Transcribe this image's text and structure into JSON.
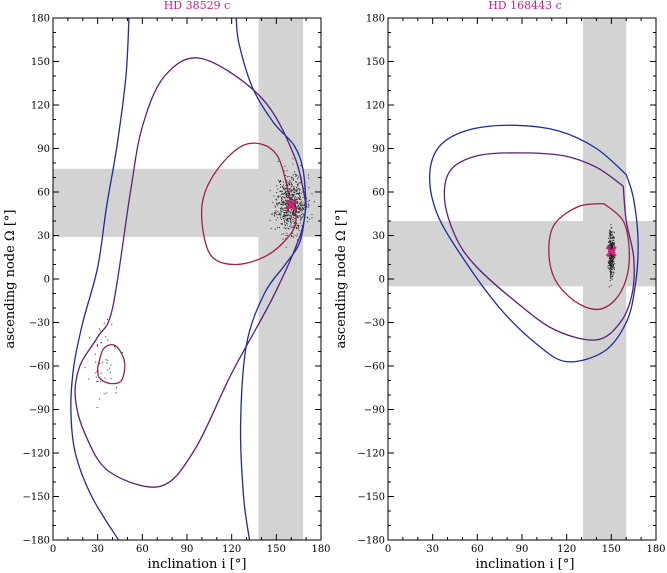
{
  "chart_data": [
    {
      "type": "scatter",
      "title": "HD 38529 c",
      "xlabel": "inclination i [°]",
      "ylabel": "ascending node Ω [°]",
      "xlim": [
        0,
        180
      ],
      "ylim": [
        -180,
        180
      ],
      "x_ticks": [
        0,
        30,
        60,
        90,
        120,
        150,
        180
      ],
      "x_tick_labels": [
        "0",
        "30",
        "60",
        "90",
        "120",
        "150",
        "180"
      ],
      "y_ticks": [
        -180,
        -150,
        -120,
        -90,
        -60,
        -30,
        0,
        30,
        60,
        90,
        120,
        150,
        180
      ],
      "y_tick_labels": [
        "−180",
        "−150",
        "−120",
        "−90",
        "−60",
        "−30",
        "0",
        "30",
        "60",
        "90",
        "120",
        "150",
        "180"
      ],
      "grid": false,
      "shaded_bands": [
        {
          "orientation": "vertical",
          "range": [
            138,
            168
          ]
        },
        {
          "orientation": "horizontal",
          "range": [
            29,
            76
          ]
        }
      ],
      "marker": {
        "x": 160,
        "y": 51
      },
      "contours": [
        {
          "color": "#9e1f4b",
          "points": [
            [
              160,
              51
            ],
            [
              150,
              86
            ],
            [
              130,
              93
            ],
            [
              110,
              75
            ],
            [
              100,
              50
            ],
            [
              105,
              18
            ],
            [
              122,
              10
            ],
            [
              145,
              17
            ],
            [
              162,
              35
            ],
            [
              162,
              51
            ]
          ]
        },
        {
          "color": "#9e1f4b",
          "points": [
            [
              30,
              -61
            ],
            [
              34,
              -48
            ],
            [
              42,
              -46
            ],
            [
              48,
              -57
            ],
            [
              46,
              -70
            ],
            [
              38,
              -72
            ],
            [
              31,
              -68
            ],
            [
              30,
              -61
            ]
          ]
        },
        {
          "color": "#5a1f7a",
          "points": [
            [
              170,
              51
            ],
            [
              162,
              85
            ],
            [
              140,
              125
            ],
            [
              100,
              152
            ],
            [
              75,
              140
            ],
            [
              60,
              105
            ],
            [
              52,
              60
            ],
            [
              40,
              -20
            ],
            [
              30,
              -40
            ],
            [
              18,
              -60
            ],
            [
              15,
              -82
            ],
            [
              22,
              -108
            ],
            [
              38,
              -133
            ],
            [
              72,
              -143
            ],
            [
              95,
              -118
            ],
            [
              120,
              -65
            ],
            [
              148,
              -12
            ],
            [
              166,
              30
            ],
            [
              170,
              51
            ]
          ]
        },
        {
          "color": "#1b2aa6",
          "points": [
            [
              170,
              51
            ],
            [
              168,
              75
            ],
            [
              162,
              92
            ],
            [
              148,
              108
            ],
            [
              134,
              132
            ],
            [
              125,
              162
            ],
            [
              123,
              180
            ]
          ]
        },
        {
          "color": "#1b2aa6",
          "points": [
            [
              170,
              51
            ],
            [
              166,
              26
            ],
            [
              156,
              10
            ],
            [
              142,
              -10
            ],
            [
              130,
              -45
            ],
            [
              126,
              -100
            ],
            [
              128,
              -150
            ],
            [
              132,
              -180
            ]
          ]
        },
        {
          "color": "#1b2aa6",
          "points": [
            [
              51,
              180
            ],
            [
              49,
              140
            ],
            [
              43,
              92
            ],
            [
              36,
              50
            ],
            [
              30,
              8
            ],
            [
              20,
              -30
            ],
            [
              14,
              -60
            ],
            [
              12,
              -90
            ],
            [
              15,
              -120
            ],
            [
              26,
              -150
            ],
            [
              44,
              -180
            ]
          ]
        }
      ]
    },
    {
      "type": "scatter",
      "title": "HD 168443 c",
      "xlabel": "inclination i [°]",
      "ylabel": "ascending node Ω [°]",
      "xlim": [
        0,
        180
      ],
      "ylim": [
        -180,
        180
      ],
      "x_ticks": [
        0,
        30,
        60,
        90,
        120,
        150,
        180
      ],
      "x_tick_labels": [
        "0",
        "30",
        "60",
        "90",
        "120",
        "150",
        "180"
      ],
      "y_ticks": [
        -180,
        -150,
        -120,
        -90,
        -60,
        -30,
        0,
        30,
        60,
        90,
        120,
        150,
        180
      ],
      "y_tick_labels": [
        "−180",
        "−150",
        "−120",
        "−90",
        "−60",
        "−30",
        "0",
        "30",
        "60",
        "90",
        "120",
        "150",
        "180"
      ],
      "grid": false,
      "shaded_bands": [
        {
          "orientation": "vertical",
          "range": [
            131,
            160
          ]
        },
        {
          "orientation": "horizontal",
          "range": [
            -5,
            40
          ]
        }
      ],
      "marker": {
        "x": 150,
        "y": 19
      },
      "contours": [
        {
          "color": "#9e1f4b",
          "points": [
            [
              145,
              52
            ],
            [
              128,
              50
            ],
            [
              112,
              38
            ],
            [
              108,
              20
            ],
            [
              112,
              0
            ],
            [
              125,
              -15
            ],
            [
              140,
              -21
            ],
            [
              152,
              -15
            ],
            [
              160,
              0
            ],
            [
              162,
              20
            ],
            [
              158,
              40
            ],
            [
              145,
              52
            ]
          ]
        },
        {
          "color": "#5a1f7a",
          "points": [
            [
              158,
              64
            ],
            [
              140,
              77
            ],
            [
              118,
              85
            ],
            [
              88,
              87
            ],
            [
              60,
              85
            ],
            [
              42,
              75
            ],
            [
              38,
              55
            ],
            [
              45,
              30
            ],
            [
              58,
              10
            ],
            [
              85,
              -15
            ],
            [
              112,
              -35
            ],
            [
              140,
              -42
            ],
            [
              156,
              -30
            ],
            [
              164,
              -10
            ],
            [
              165,
              15
            ],
            [
              160,
              40
            ],
            [
              158,
              64
            ]
          ]
        },
        {
          "color": "#1b2aa6",
          "points": [
            [
              160,
              72
            ],
            [
              140,
              90
            ],
            [
              115,
              102
            ],
            [
              85,
              106
            ],
            [
              55,
              103
            ],
            [
              35,
              92
            ],
            [
              28,
              72
            ],
            [
              33,
              45
            ],
            [
              50,
              15
            ],
            [
              75,
              -20
            ],
            [
              100,
              -45
            ],
            [
              120,
              -57
            ],
            [
              145,
              -50
            ],
            [
              160,
              -30
            ],
            [
              166,
              -5
            ],
            [
              168,
              25
            ],
            [
              165,
              55
            ],
            [
              160,
              72
            ]
          ]
        }
      ]
    }
  ]
}
